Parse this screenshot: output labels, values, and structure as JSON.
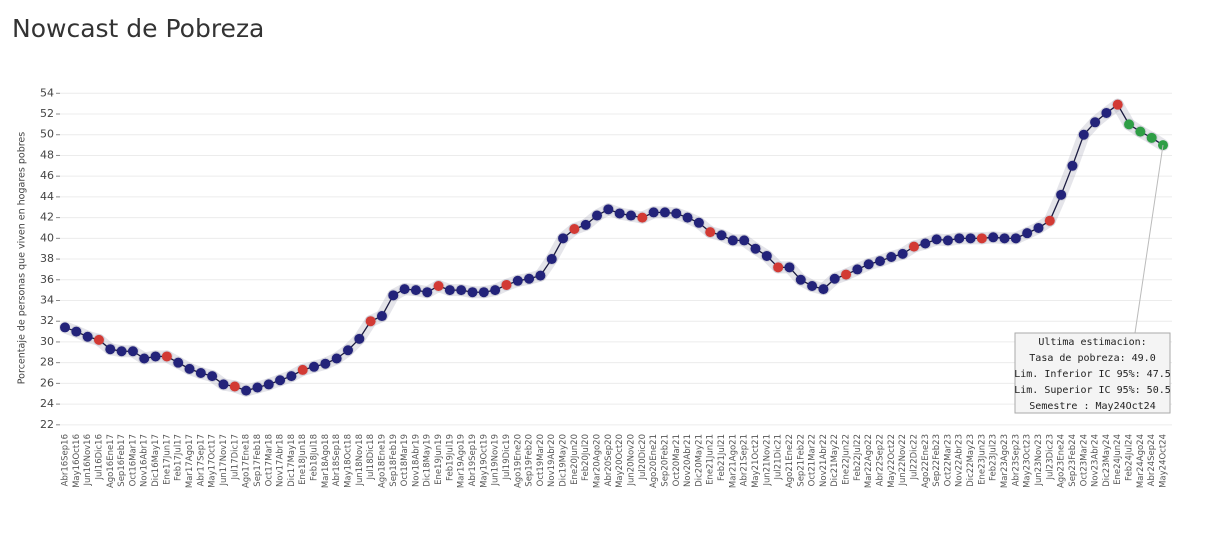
{
  "chart_data": {
    "type": "line",
    "title": "Nowcast de Pobreza",
    "ylabel": "Porcentaje de personas que viven en hogares pobres",
    "categories": [
      "Abr16Sep16",
      "May16Oct16",
      "Jun16Nov16",
      "Jul16Dic16",
      "Ago16Ene17",
      "Sep16Feb17",
      "Oct16Mar17",
      "Nov16Abr17",
      "Dic16May17",
      "Ene17Jun17",
      "Feb17Jul17",
      "Mar17Ago17",
      "Abr17Sep17",
      "May17Oct17",
      "Jun17Nov17",
      "Jul17Dic17",
      "Ago17Ene18",
      "Sep17Feb18",
      "Oct17Mar18",
      "Nov17Abr18",
      "Dic17May18",
      "Ene18Jun18",
      "Feb18Jul18",
      "Mar18Ago18",
      "Abr18Sep18",
      "May18Oct18",
      "Jun18Nov18",
      "Jul18Dic18",
      "Ago18Ene19",
      "Sep18Feb19",
      "Oct18Mar19",
      "Nov18Abr19",
      "Dic18May19",
      "Ene19Jun19",
      "Feb19Jul19",
      "Mar19Ago19",
      "Abr19Sep19",
      "May19Oct19",
      "Jun19Nov19",
      "Jul19Dic19",
      "Ago19Ene20",
      "Sep19Feb20",
      "Oct19Mar20",
      "Nov19Abr20",
      "Dic19May20",
      "Ene20Jun20",
      "Feb20Jul20",
      "Mar20Ago20",
      "Abr20Sep20",
      "May20Oct20",
      "Jun20Nov20",
      "Jul20Dic20",
      "Ago20Ene21",
      "Sep20Feb21",
      "Oct20Mar21",
      "Nov20Abr21",
      "Dic20May21",
      "Ene21Jun21",
      "Feb21Jul21",
      "Mar21Ago21",
      "Abr21Sep21",
      "May21Oct21",
      "Jun21Nov21",
      "Jul21Dic21",
      "Ago21Ene22",
      "Sep21Feb22",
      "Oct21Mar22",
      "Nov21Abr22",
      "Dic21May22",
      "Ene22Jun22",
      "Feb22Jul22",
      "Mar22Ago22",
      "Abr22Sep22",
      "May22Oct22",
      "Jun22Nov22",
      "Jul22Dic22",
      "Ago22Ene23",
      "Sep22Feb23",
      "Oct22Mar23",
      "Nov22Abr23",
      "Dic22May23",
      "Ene23Jun23",
      "Feb23Jul23",
      "Mar23Ago23",
      "Abr23Sep23",
      "May23Oct23",
      "Jun23Nov23",
      "Jul23Dic23",
      "Ago23Ene24",
      "Sep23Feb24",
      "Oct23Mar24",
      "Nov23Abr24",
      "Dic23May24",
      "Ene24Jun24",
      "Feb24Jul24",
      "Mar24Ago24",
      "Abr24Sep24",
      "May24Oct24"
    ],
    "series": [
      {
        "color": "#23237a",
        "values": [
          31.4,
          31.0,
          30.5,
          null,
          29.3,
          29.1,
          29.1,
          28.4,
          28.6,
          null,
          28.0,
          27.4,
          27.0,
          26.7,
          25.9,
          null,
          25.3,
          25.6,
          25.9,
          26.3,
          26.7,
          null,
          27.6,
          27.9,
          28.4,
          29.2,
          30.3,
          null,
          32.5,
          34.5,
          35.1,
          35.0,
          34.8,
          null,
          35.0,
          35.0,
          34.8,
          34.8,
          35.0,
          null,
          35.9,
          36.1,
          36.4,
          38.0,
          40.0,
          null,
          41.3,
          42.2,
          42.8,
          42.4,
          42.2,
          null,
          42.5,
          42.5,
          42.4,
          42.0,
          41.5,
          null,
          40.3,
          39.8,
          39.8,
          39.0,
          38.3,
          null,
          37.2,
          36.0,
          35.4,
          35.1,
          36.1,
          null,
          37.0,
          37.5,
          37.8,
          38.2,
          38.5,
          null,
          39.5,
          39.9,
          39.8,
          40.0,
          40.0,
          null,
          40.1,
          40.0,
          40.0,
          40.5,
          41.0,
          null,
          44.2,
          47.0,
          50.0,
          51.2,
          52.1,
          null,
          null,
          null,
          null,
          null
        ]
      },
      {
        "color": "#d23a34",
        "values": [
          null,
          null,
          null,
          30.2,
          null,
          null,
          null,
          null,
          null,
          28.6,
          null,
          null,
          null,
          null,
          null,
          25.7,
          null,
          null,
          null,
          null,
          null,
          27.3,
          null,
          null,
          null,
          null,
          null,
          32.0,
          null,
          null,
          null,
          null,
          null,
          35.4,
          null,
          null,
          null,
          null,
          null,
          35.5,
          null,
          null,
          null,
          null,
          null,
          40.9,
          null,
          null,
          null,
          null,
          null,
          42.0,
          null,
          null,
          null,
          null,
          null,
          40.6,
          null,
          null,
          null,
          null,
          null,
          37.2,
          null,
          null,
          null,
          null,
          null,
          36.5,
          null,
          null,
          null,
          null,
          null,
          39.2,
          null,
          null,
          null,
          null,
          null,
          40.0,
          null,
          null,
          null,
          null,
          null,
          41.7,
          null,
          null,
          null,
          null,
          null,
          52.9,
          null,
          null,
          null,
          null
        ]
      },
      {
        "color": "#2e9e45",
        "values": [
          null,
          null,
          null,
          null,
          null,
          null,
          null,
          null,
          null,
          null,
          null,
          null,
          null,
          null,
          null,
          null,
          null,
          null,
          null,
          null,
          null,
          null,
          null,
          null,
          null,
          null,
          null,
          null,
          null,
          null,
          null,
          null,
          null,
          null,
          null,
          null,
          null,
          null,
          null,
          null,
          null,
          null,
          null,
          null,
          null,
          null,
          null,
          null,
          null,
          null,
          null,
          null,
          null,
          null,
          null,
          null,
          null,
          null,
          null,
          null,
          null,
          null,
          null,
          null,
          null,
          null,
          null,
          null,
          null,
          null,
          null,
          null,
          null,
          null,
          null,
          null,
          null,
          null,
          null,
          null,
          null,
          null,
          null,
          null,
          null,
          null,
          null,
          null,
          null,
          null,
          null,
          null,
          null,
          null,
          51.0,
          50.3,
          49.7,
          49.0
        ]
      }
    ],
    "ylim": [
      21.5,
      54.8
    ],
    "yticks": [
      22,
      24,
      26,
      28,
      30,
      32,
      34,
      36,
      38,
      40,
      42,
      44,
      46,
      48,
      50,
      52,
      54
    ],
    "grid": true,
    "tooltip": {
      "title": "Ultima estimacion:",
      "rows": [
        "Tasa de pobreza:  49.0",
        "Lim. Inferior IC 95%:  47.5",
        "Lim. Superior IC 95%:  50.5",
        "Semestre : May24Oct24"
      ]
    }
  }
}
